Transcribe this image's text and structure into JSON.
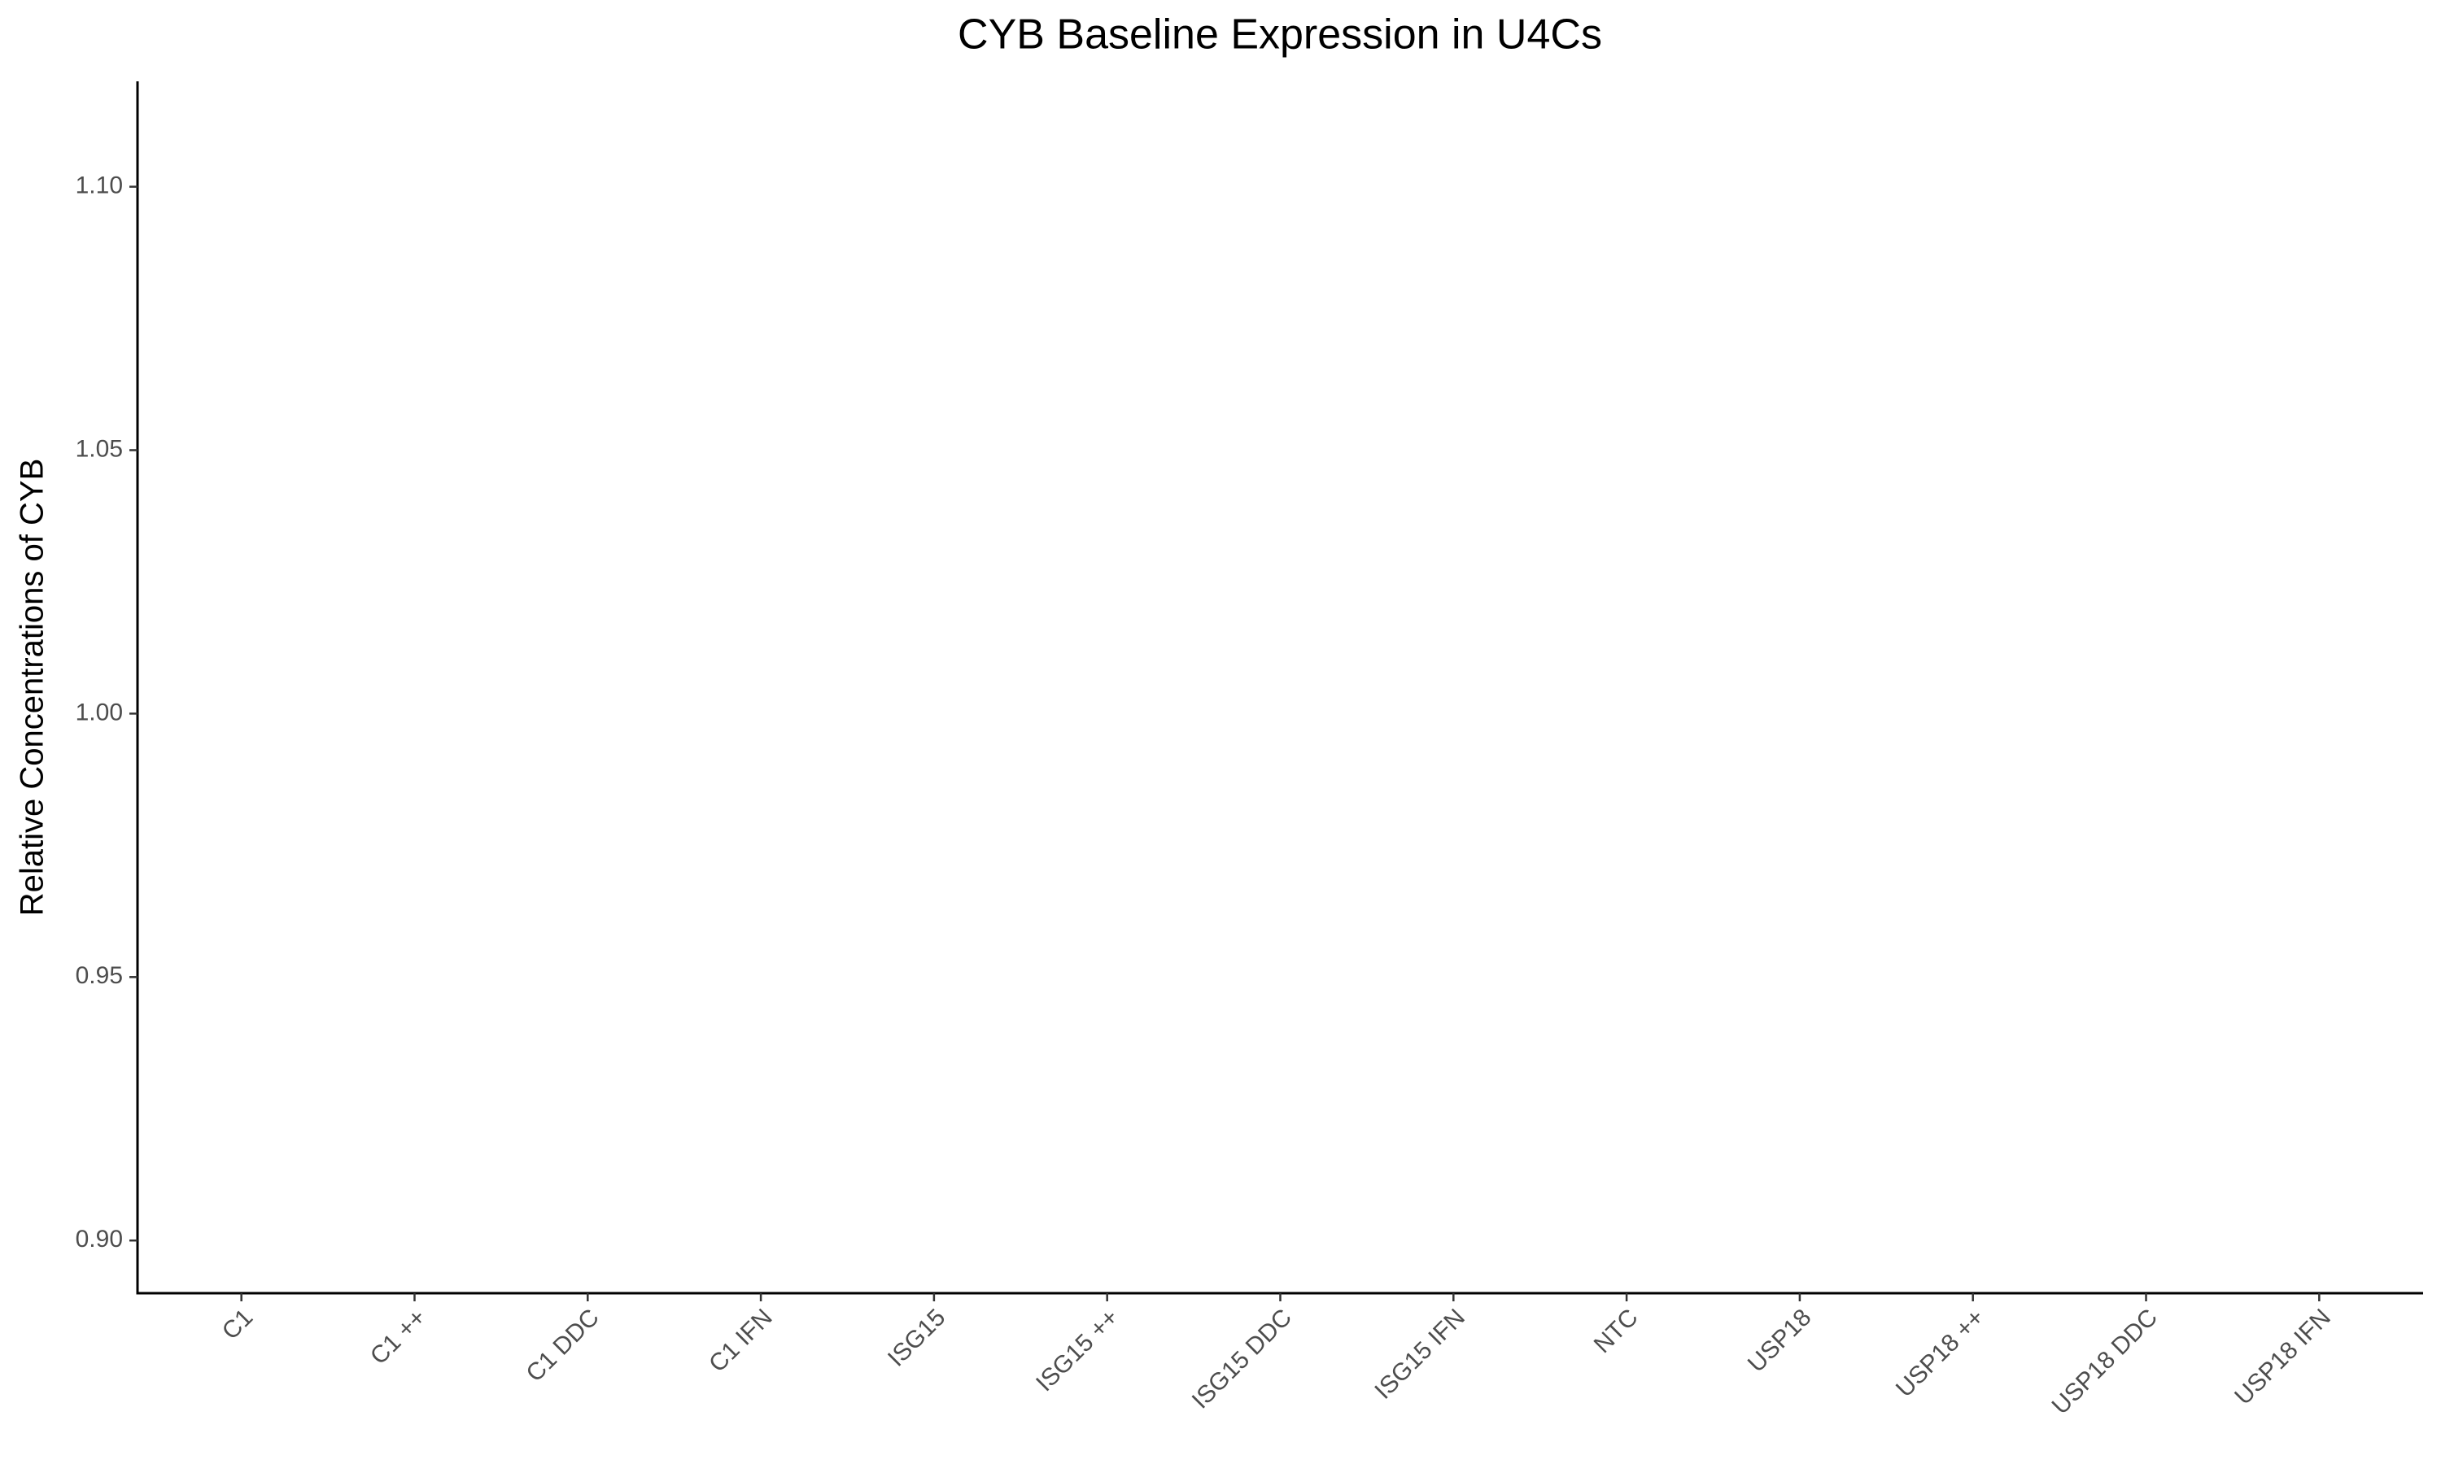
{
  "chart_data": {
    "type": "bar",
    "title": "CYB Baseline Expression in U4Cs",
    "y_label": "Relative Concentrations of CYB",
    "categories": [
      "C1",
      "C1 ++",
      "C1 DDC",
      "C1 IFN",
      "ISG15",
      "ISG15 ++",
      "ISG15 DDC",
      "ISG15 IFN",
      "NTC",
      "USP18",
      "USP18 ++",
      "USP18 DDC",
      "USP18 IFN"
    ],
    "ylim": [
      0.89,
      1.12
    ],
    "yticks": [
      {
        "value": 0.9,
        "label": "0.90"
      },
      {
        "value": 0.95,
        "label": "0.95"
      },
      {
        "value": 1.0,
        "label": "1.00"
      },
      {
        "value": 1.05,
        "label": "1.05"
      },
      {
        "value": 1.1,
        "label": "1.10"
      }
    ],
    "grid": false
  }
}
